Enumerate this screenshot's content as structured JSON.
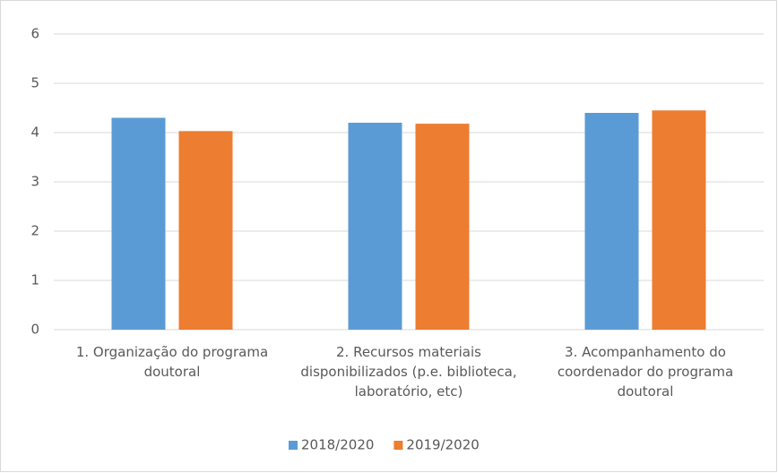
{
  "chart_data": {
    "type": "bar",
    "categories": [
      "1. Organização do programa doutoral",
      "2. Recursos materiais disponibilizados (p.e. biblioteca, laboratório, etc)",
      "3. Acompanhamento do coordenador do programa doutoral"
    ],
    "series": [
      {
        "name": "2018/2020",
        "color": "#5b9bd5",
        "values": [
          4.3,
          4.2,
          4.4
        ]
      },
      {
        "name": "2019/2020",
        "color": "#ed7d31",
        "values": [
          4.03,
          4.18,
          4.45
        ]
      }
    ],
    "ylim": [
      0,
      6
    ],
    "yticks": [
      0,
      1,
      2,
      3,
      4,
      5,
      6
    ],
    "grid": true,
    "legend": "bottom"
  }
}
